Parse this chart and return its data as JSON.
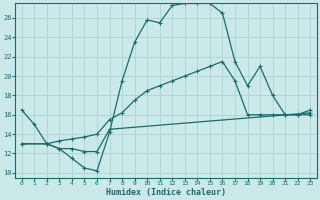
{
  "title": "",
  "xlabel": "Humidex (Indice chaleur)",
  "ylabel": "",
  "bg_color": "#cce9e9",
  "line_color": "#1a6b6b",
  "grid_color": "#aad4d4",
  "x_ticks": [
    0,
    1,
    2,
    3,
    4,
    5,
    6,
    7,
    8,
    9,
    10,
    11,
    12,
    13,
    14,
    15,
    16,
    17,
    18,
    19,
    20,
    21,
    22,
    23
  ],
  "y_ticks": [
    10,
    12,
    14,
    16,
    18,
    20,
    22,
    24,
    26
  ],
  "xlim": [
    -0.5,
    23.5
  ],
  "ylim": [
    9.5,
    27.5
  ],
  "series1_x": [
    0,
    1,
    2,
    3,
    4,
    5,
    6,
    7,
    8,
    9,
    10,
    11,
    12,
    13,
    14,
    15,
    16,
    17,
    18,
    19,
    20,
    21,
    22,
    23
  ],
  "series1_y": [
    16.5,
    15.0,
    13.0,
    12.5,
    11.5,
    10.5,
    10.2,
    14.2,
    19.5,
    23.5,
    25.8,
    25.5,
    27.3,
    27.5,
    27.5,
    27.5,
    26.5,
    21.5,
    19.0,
    21.0,
    18.0,
    16.0,
    16.0,
    16.5
  ],
  "series2_x": [
    0,
    2,
    3,
    4,
    5,
    6,
    7,
    23
  ],
  "series2_y": [
    13.0,
    13.0,
    12.5,
    12.5,
    12.2,
    12.2,
    14.5,
    16.2
  ],
  "series3_x": [
    0,
    2,
    3,
    4,
    5,
    6,
    7,
    8,
    9,
    10,
    11,
    12,
    13,
    14,
    15,
    16,
    17,
    18,
    19,
    20,
    21,
    22,
    23
  ],
  "series3_y": [
    13.0,
    13.0,
    13.3,
    13.5,
    13.7,
    14.0,
    15.5,
    16.2,
    17.5,
    18.5,
    19.0,
    19.5,
    20.0,
    20.5,
    21.0,
    21.5,
    19.5,
    16.0,
    16.0,
    16.0,
    16.0,
    16.0,
    16.0
  ]
}
